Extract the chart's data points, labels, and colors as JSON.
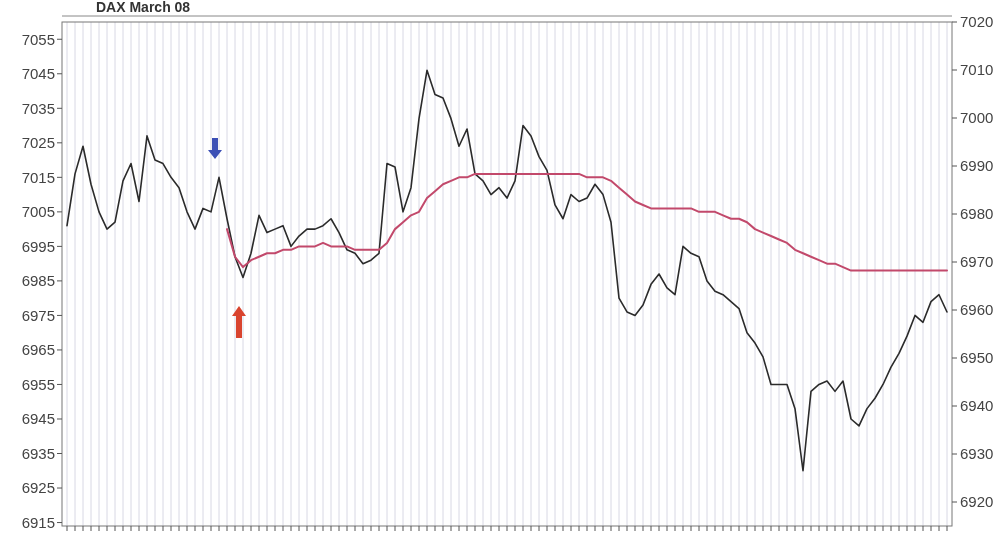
{
  "chart_data": {
    "type": "line",
    "title": "DAX March 08",
    "categories": [
      null,
      null,
      null,
      null,
      null,
      null,
      null,
      null,
      null,
      null,
      null,
      null,
      null,
      null,
      null,
      null,
      null,
      null,
      null,
      null,
      null,
      null,
      null,
      null,
      null,
      null,
      null,
      null,
      null,
      null,
      null,
      null,
      null,
      null,
      null,
      null,
      null,
      null,
      null,
      null,
      null,
      null,
      null,
      null,
      null,
      null,
      null,
      null,
      null,
      null,
      null,
      null,
      null,
      null,
      null,
      null,
      null,
      null,
      null,
      null,
      null,
      null,
      null,
      null,
      null,
      null,
      null,
      null,
      null,
      null,
      null,
      null,
      null,
      null,
      null,
      null,
      null,
      null,
      null,
      null,
      null,
      null,
      null,
      null,
      null,
      null,
      null,
      null,
      null,
      null,
      null,
      null,
      null,
      null,
      null,
      null,
      null,
      null,
      null,
      null,
      null,
      null,
      null,
      null,
      null,
      null,
      null,
      null,
      null,
      null,
      null
    ],
    "series": [
      {
        "color": "#2b2b2b",
        "values": [
          7001,
          7016,
          7024,
          7013,
          7005,
          7000,
          7002,
          7014,
          7019,
          7008,
          7027,
          7020,
          7019,
          7015,
          7012,
          7005,
          7000,
          7006,
          7005,
          7015,
          7003,
          6992,
          6986,
          6993,
          7004,
          6999,
          7000,
          7001,
          6995,
          6998,
          7000,
          7000,
          7001,
          7003,
          6999,
          6994,
          6993,
          6990,
          6991,
          6993,
          7019,
          7018,
          7005,
          7012,
          7032,
          7046,
          7039,
          7038,
          7032,
          7024,
          7029,
          7016,
          7014,
          7010,
          7012,
          7009,
          7014,
          7030,
          7027,
          7021,
          7017,
          7007,
          7003,
          7010,
          7008,
          7009,
          7013,
          7010,
          7002,
          6980,
          6976,
          6975,
          6978,
          6984,
          6987,
          6983,
          6981,
          6995,
          6993,
          6992,
          6985,
          6982,
          6981,
          6979,
          6977,
          6970,
          6967,
          6963,
          6955,
          6955,
          6955,
          6948,
          6930,
          6953,
          6955,
          6956,
          6953,
          6956,
          6945,
          6943,
          6948,
          6951,
          6955,
          6960,
          6964,
          6969,
          6975,
          6973,
          6979,
          6981,
          6976
        ]
      },
      {
        "color": "#c2496b",
        "values": [
          null,
          null,
          null,
          null,
          null,
          null,
          null,
          null,
          null,
          null,
          null,
          null,
          null,
          null,
          null,
          null,
          null,
          null,
          null,
          null,
          7000,
          6992,
          6989,
          6991,
          6992,
          6993,
          6993,
          6994,
          6994,
          6995,
          6995,
          6995,
          6996,
          6995,
          6995,
          6995,
          6994,
          6994,
          6994,
          6994,
          6996,
          7000,
          7002,
          7004,
          7005,
          7009,
          7011,
          7013,
          7014,
          7015,
          7015,
          7016,
          7016,
          7016,
          7016,
          7016,
          7016,
          7016,
          7016,
          7016,
          7016,
          7016,
          7016,
          7016,
          7016,
          7015,
          7015,
          7015,
          7014,
          7012,
          7010,
          7008,
          7007,
          7006,
          7006,
          7006,
          7006,
          7006,
          7006,
          7005,
          7005,
          7005,
          7004,
          7003,
          7003,
          7002,
          7000,
          6999,
          6998,
          6997,
          6996,
          6994,
          6993,
          6992,
          6991,
          6990,
          6990,
          6989,
          6988,
          6988,
          6988,
          6988,
          6988,
          6988,
          6988,
          6988,
          6988,
          6988,
          6988,
          6988,
          6988
        ]
      }
    ],
    "ylim": [
      6914,
      7060
    ],
    "yticks": [
      6915,
      6925,
      6935,
      6945,
      6955,
      6965,
      6975,
      6985,
      6995,
      7005,
      7015,
      7025,
      7035,
      7045,
      7055
    ],
    "y2lim": [
      6915,
      7020
    ],
    "y2ticks": [
      6920,
      6930,
      6940,
      6950,
      6960,
      6970,
      6980,
      6990,
      7000,
      7010,
      7020
    ],
    "grid": "x",
    "line_style": "solid",
    "marker": "none"
  }
}
